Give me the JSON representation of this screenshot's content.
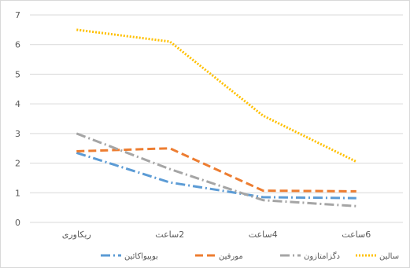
{
  "chart_data": {
    "type": "line",
    "categories": [
      "ریکاوری",
      "2ساعت",
      "4ساعت",
      "6ساعت"
    ],
    "ylim": [
      0,
      7
    ],
    "yticks": [
      "0",
      "1",
      "2",
      "3",
      "4",
      "5",
      "6",
      "7"
    ],
    "grid": true,
    "legend_position": "bottom",
    "series": [
      {
        "name": "بوپیواکائین",
        "values": [
          2.35,
          1.35,
          0.85,
          0.82
        ],
        "color": "#5b9bd5",
        "dash": "dash-dot"
      },
      {
        "name": "مورفین",
        "values": [
          2.4,
          2.5,
          1.07,
          1.05
        ],
        "color": "#ed7d31",
        "dash": "dash"
      },
      {
        "name": "دگزامتازون",
        "values": [
          3.0,
          1.8,
          0.75,
          0.55
        ],
        "color": "#a5a5a5",
        "dash": "dash-dot"
      },
      {
        "name": "سالین",
        "values": [
          6.5,
          6.1,
          3.6,
          2.05
        ],
        "color": "#ffc000",
        "dash": "dot"
      }
    ]
  }
}
